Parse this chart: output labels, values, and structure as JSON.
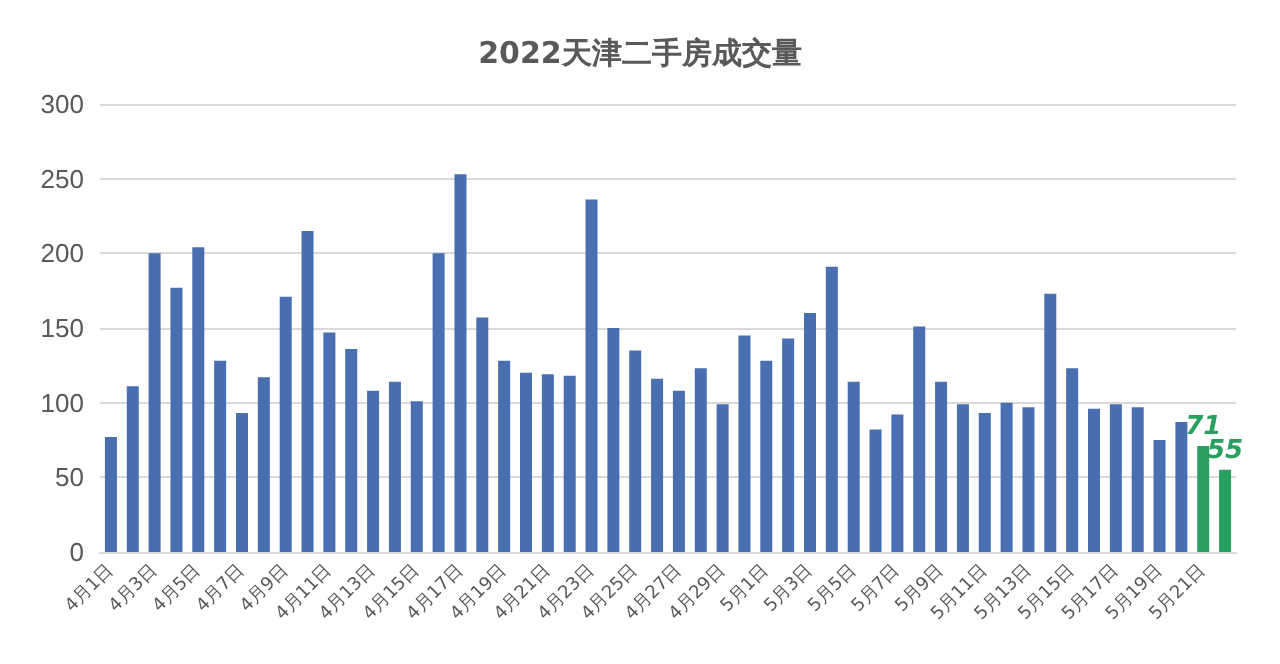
{
  "chart_data": {
    "type": "bar",
    "title": "2022天津二手房成交量",
    "categories": [
      "4月1日",
      null,
      "4月3日",
      null,
      "4月5日",
      null,
      "4月7日",
      null,
      "4月9日",
      null,
      "4月11日",
      null,
      "4月13日",
      null,
      "4月15日",
      null,
      "4月17日",
      null,
      "4月19日",
      null,
      "4月21日",
      null,
      "4月23日",
      null,
      "4月25日",
      null,
      "4月27日",
      null,
      "4月29日",
      null,
      "5月1日",
      null,
      "5月3日",
      null,
      "5月5日",
      null,
      "5月7日",
      null,
      "5月9日",
      null,
      "5月11日",
      null,
      "5月13日",
      null,
      "5月15日",
      null,
      "5月17日",
      null,
      "5月19日",
      null,
      "5月21日",
      null
    ],
    "values": [
      77,
      111,
      200,
      177,
      204,
      128,
      93,
      117,
      171,
      215,
      147,
      136,
      108,
      114,
      101,
      200,
      253,
      157,
      128,
      120,
      119,
      118,
      236,
      150,
      135,
      116,
      108,
      123,
      99,
      145,
      128,
      143,
      160,
      191,
      114,
      82,
      92,
      151,
      114,
      99,
      93,
      100,
      97,
      173,
      123,
      96,
      99,
      97,
      75,
      87,
      71,
      55
    ],
    "colors": [
      "#4a6fb0",
      "#4a6fb0",
      "#4a6fb0",
      "#4a6fb0",
      "#4a6fb0",
      "#4a6fb0",
      "#4a6fb0",
      "#4a6fb0",
      "#4a6fb0",
      "#4a6fb0",
      "#4a6fb0",
      "#4a6fb0",
      "#4a6fb0",
      "#4a6fb0",
      "#4a6fb0",
      "#4a6fb0",
      "#4a6fb0",
      "#4a6fb0",
      "#4a6fb0",
      "#4a6fb0",
      "#4a6fb0",
      "#4a6fb0",
      "#4a6fb0",
      "#4a6fb0",
      "#4a6fb0",
      "#4a6fb0",
      "#4a6fb0",
      "#4a6fb0",
      "#4a6fb0",
      "#4a6fb0",
      "#4a6fb0",
      "#4a6fb0",
      "#4a6fb0",
      "#4a6fb0",
      "#4a6fb0",
      "#4a6fb0",
      "#4a6fb0",
      "#4a6fb0",
      "#4a6fb0",
      "#4a6fb0",
      "#4a6fb0",
      "#4a6fb0",
      "#4a6fb0",
      "#4a6fb0",
      "#4a6fb0",
      "#4a6fb0",
      "#4a6fb0",
      "#4a6fb0",
      "#4a6fb0",
      "#4a6fb0",
      "#2aa060",
      "#2aa060"
    ],
    "value_labels": [
      null,
      null,
      null,
      null,
      null,
      null,
      null,
      null,
      null,
      null,
      null,
      null,
      null,
      null,
      null,
      null,
      null,
      null,
      null,
      null,
      null,
      null,
      null,
      null,
      null,
      null,
      null,
      null,
      null,
      null,
      null,
      null,
      null,
      null,
      null,
      null,
      null,
      null,
      null,
      null,
      null,
      null,
      null,
      null,
      null,
      null,
      null,
      null,
      null,
      null,
      "71",
      "55"
    ],
    "ylim": [
      0,
      300
    ],
    "yticks": [
      0,
      50,
      100,
      150,
      200,
      250,
      300
    ],
    "grid": true
  }
}
